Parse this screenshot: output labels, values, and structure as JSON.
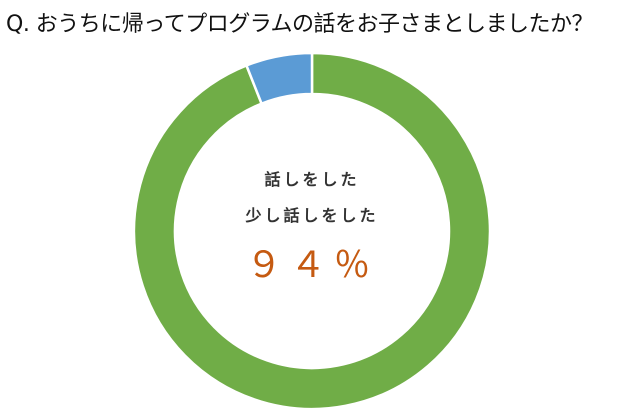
{
  "chart_data": {
    "type": "pie",
    "variant": "donut",
    "title": "Q. おうちに帰ってプログラムの話をお子さまとしましたか？",
    "slices": [
      {
        "value": 94,
        "color": "#70ad47"
      },
      {
        "value": 6,
        "color": "#5b9bd5"
      }
    ],
    "center_label": {
      "line1": "話しをした",
      "line2": "少し話しをした",
      "value": "９４％"
    },
    "center_value_color": "#c55a11"
  }
}
